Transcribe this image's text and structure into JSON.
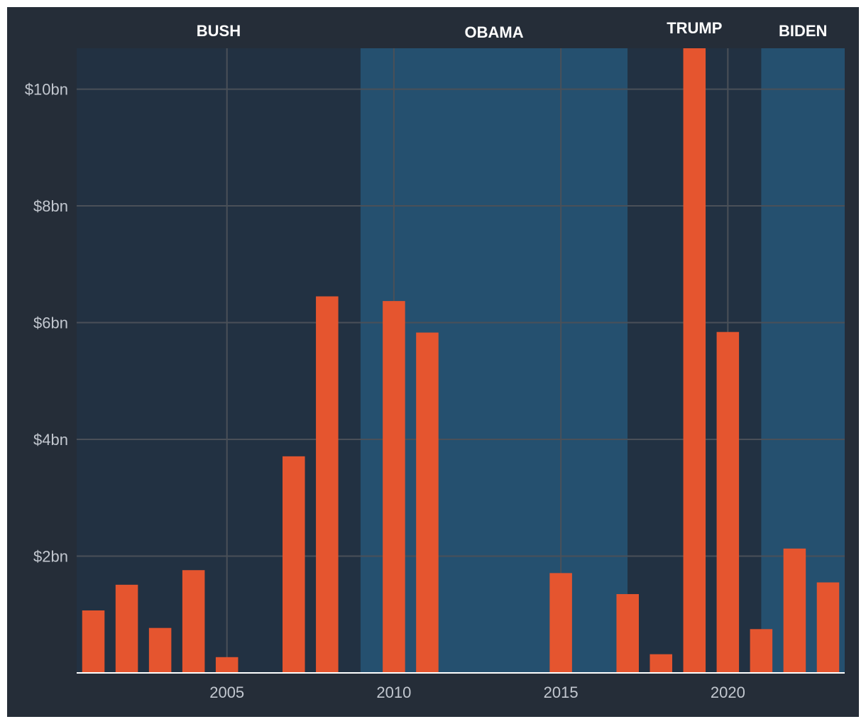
{
  "chart_data": {
    "type": "bar",
    "x": [
      2001,
      2002,
      2003,
      2004,
      2005,
      2006,
      2007,
      2008,
      2009,
      2010,
      2011,
      2012,
      2013,
      2014,
      2015,
      2016,
      2017,
      2018,
      2019,
      2020,
      2021,
      2022,
      2023
    ],
    "values": [
      1.07,
      1.51,
      0.77,
      1.76,
      0.27,
      0,
      3.71,
      6.45,
      0,
      6.37,
      5.83,
      0,
      0,
      0,
      1.71,
      0,
      1.35,
      0.32,
      10.7,
      5.84,
      0.75,
      2.13,
      1.55
    ],
    "xlim": [
      2000.5,
      2023.5
    ],
    "ylim": [
      0,
      10.7
    ],
    "yticks": [
      2,
      4,
      6,
      8,
      10
    ],
    "ytick_labels": [
      "$2bn",
      "$4bn",
      "$6bn",
      "$8bn",
      "$10bn"
    ],
    "xticks": [
      2005,
      2010,
      2015,
      2020
    ],
    "xtick_labels": [
      "2005",
      "2010",
      "2015",
      "2020"
    ],
    "bar_color": "#e5552f",
    "grid": true,
    "eras": [
      {
        "label": "BUSH",
        "start": 2000.5,
        "end": 2009.0,
        "color": "#223142"
      },
      {
        "label": "OBAMA",
        "start": 2009.0,
        "end": 2017.0,
        "color": "#25506f"
      },
      {
        "label": "TRUMP",
        "start": 2017.0,
        "end": 2021.0,
        "color": "#223142"
      },
      {
        "label": "BIDEN",
        "start": 2021.0,
        "end": 2023.5,
        "color": "#25506f"
      }
    ]
  }
}
